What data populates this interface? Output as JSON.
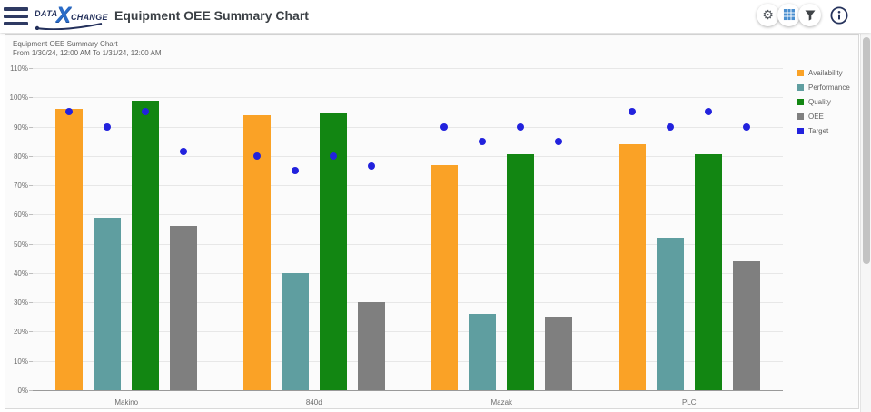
{
  "header": {
    "title": "Equipment OEE Summary Chart",
    "logo": {
      "prefix": "DATA",
      "x": "X",
      "suffix": "CHANGE"
    },
    "icons": {
      "menu": "hamburger-menu",
      "settings": "gear",
      "grid_view": "table-grid",
      "filter": "funnel",
      "info": "info-circle"
    }
  },
  "colors": {
    "navy": "#2e3a63",
    "logo_blue": "#2a6cc8",
    "grid_icon_blue": "#4a8fd0",
    "axis_line": "#9a9a9a",
    "grid_line": "#e7e7e7"
  },
  "chart": {
    "title": "Equipment OEE Summary Chart",
    "subtitle": "From 1/30/24, 12:00 AM To 1/31/24, 12:00 AM"
  },
  "chart_data": {
    "type": "bar",
    "title": "Equipment OEE Summary Chart",
    "subtitle": "From 1/30/24, 12:00 AM To 1/31/24, 12:00 AM",
    "categories": [
      "Makino",
      "840d",
      "Mazak",
      "PLC"
    ],
    "series": [
      {
        "name": "Availability",
        "type": "bar",
        "color": "#FAA226",
        "values": [
          96,
          94,
          77,
          84
        ]
      },
      {
        "name": "Performance",
        "type": "bar",
        "color": "#5F9EA0",
        "values": [
          59,
          40,
          26,
          52
        ]
      },
      {
        "name": "Quality",
        "type": "bar",
        "color": "#128612",
        "values": [
          99,
          94.5,
          80.5,
          80.5
        ]
      },
      {
        "name": "OEE",
        "type": "bar",
        "color": "#7F7F7F",
        "values": [
          56,
          30,
          25,
          44
        ]
      },
      {
        "name": "Target",
        "type": "point",
        "color": "#2222DD",
        "per_series": {
          "Availability": [
            95,
            80,
            90,
            95
          ],
          "Performance": [
            90,
            75,
            85,
            90
          ],
          "Quality": [
            95,
            80,
            90,
            95
          ],
          "OEE": [
            81.5,
            76.5,
            85,
            90
          ]
        }
      }
    ],
    "ylim": [
      0,
      110
    ],
    "ytick_step": 10,
    "ytick_suffix": "%",
    "grid": "horizontal",
    "legend_position": "right-top"
  }
}
